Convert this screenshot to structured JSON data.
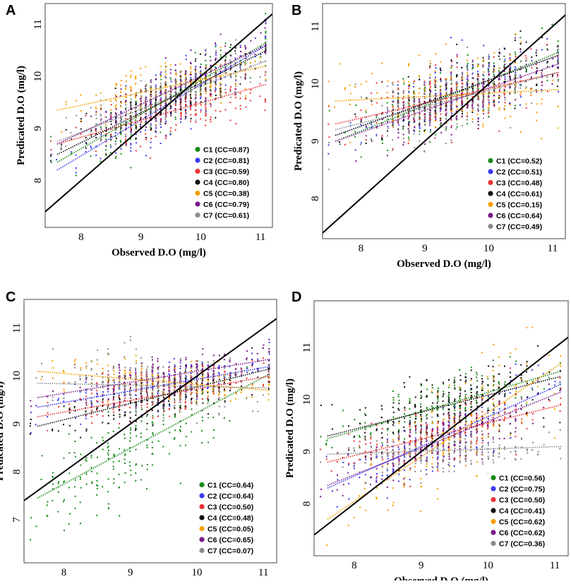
{
  "series_colors": {
    "C1": "#1a8a1a",
    "C2": "#3a3aee",
    "C3": "#ee3333",
    "C4": "#111111",
    "C5": "#f5a000",
    "C6": "#7a1a8a",
    "C7": "#8a8a8a"
  },
  "chart_data": [
    {
      "type": "scatter",
      "panel": "A",
      "xlabel": "Observed D.O (mg/l)",
      "ylabel": "Predicated D.O (mg/l)",
      "xlim": [
        7.4,
        11.2
      ],
      "ylim": [
        7.1,
        11.4
      ],
      "xticks": [
        8,
        9,
        10,
        11
      ],
      "yticks": [
        8,
        9,
        10,
        11
      ],
      "legend_position": "bottom-right",
      "series": [
        {
          "name": "C1",
          "label": "C1 (CC=0.87)",
          "cc": 0.87,
          "fit": [
            [
              7.6,
              8.35
            ],
            [
              11.1,
              10.65
            ]
          ],
          "center": [
            9.5,
            9.6
          ],
          "spread": 0.45
        },
        {
          "name": "C2",
          "label": "C2 (CC=0.81)",
          "cc": 0.81,
          "fit": [
            [
              7.6,
              8.2
            ],
            [
              11.1,
              10.6
            ]
          ],
          "center": [
            9.4,
            9.4
          ],
          "spread": 0.5
        },
        {
          "name": "C3",
          "label": "C3 (CC=0.59)",
          "cc": 0.59,
          "fit": [
            [
              7.6,
              8.7
            ],
            [
              11.1,
              9.85
            ]
          ],
          "center": [
            9.6,
            9.3
          ],
          "spread": 0.45
        },
        {
          "name": "C4",
          "label": "C4 (CC=0.80)",
          "cc": 0.8,
          "fit": [
            [
              7.6,
              8.5
            ],
            [
              11.1,
              10.5
            ]
          ],
          "center": [
            9.5,
            9.6
          ],
          "spread": 0.45
        },
        {
          "name": "C5",
          "label": "C5 (CC=0.38)",
          "cc": 0.38,
          "fit": [
            [
              7.6,
              9.35
            ],
            [
              11.1,
              10.2
            ]
          ],
          "center": [
            9.4,
            9.9
          ],
          "spread": 0.35
        },
        {
          "name": "C6",
          "label": "C6 (CC=0.79)",
          "cc": 0.79,
          "fit": [
            [
              7.6,
              8.7
            ],
            [
              11.1,
              10.6
            ]
          ],
          "center": [
            9.6,
            9.8
          ],
          "spread": 0.4
        },
        {
          "name": "C7",
          "label": "C7 (CC=0.61)",
          "cc": 0.61,
          "fit": [
            [
              7.6,
              8.75
            ],
            [
              11.1,
              10.3
            ]
          ],
          "center": [
            9.5,
            9.6
          ],
          "spread": 0.4
        }
      ]
    },
    {
      "type": "scatter",
      "panel": "B",
      "xlabel": "Observed D.O (mg/l)",
      "ylabel": "Predicated D.O (mg/l)",
      "xlim": [
        7.4,
        11.2
      ],
      "ylim": [
        7.3,
        11.4
      ],
      "xticks": [
        8,
        9,
        10,
        11
      ],
      "yticks": [
        8,
        9,
        10,
        11
      ],
      "legend_position": "bottom-right",
      "series": [
        {
          "name": "C1",
          "label": "C1 (CC=0.52)",
          "cc": 0.52,
          "fit": [
            [
              7.6,
              9.0
            ],
            [
              11.1,
              10.55
            ]
          ],
          "center": [
            9.5,
            9.8
          ],
          "spread": 0.5
        },
        {
          "name": "C2",
          "label": "C2 (CC=0.51)",
          "cc": 0.51,
          "fit": [
            [
              7.6,
              9.1
            ],
            [
              11.1,
              10.5
            ]
          ],
          "center": [
            9.5,
            9.7
          ],
          "spread": 0.5
        },
        {
          "name": "C3",
          "label": "C3 (CC=0.48)",
          "cc": 0.48,
          "fit": [
            [
              7.6,
              9.3
            ],
            [
              11.1,
              10.2
            ]
          ],
          "center": [
            9.5,
            9.7
          ],
          "spread": 0.45
        },
        {
          "name": "C4",
          "label": "C4 (CC=0.61)",
          "cc": 0.61,
          "fit": [
            [
              7.6,
              9.1
            ],
            [
              11.1,
              10.5
            ]
          ],
          "center": [
            9.5,
            9.8
          ],
          "spread": 0.45
        },
        {
          "name": "C5",
          "label": "C5 (CC=0.15)",
          "cc": 0.15,
          "fit": [
            [
              7.6,
              9.7
            ],
            [
              11.1,
              9.9
            ]
          ],
          "center": [
            9.4,
            9.7
          ],
          "spread": 0.55
        },
        {
          "name": "C6",
          "label": "C6 (CC=0.64)",
          "cc": 0.64,
          "fit": [
            [
              7.6,
              9.0
            ],
            [
              11.1,
              10.35
            ]
          ],
          "center": [
            9.5,
            9.8
          ],
          "spread": 0.45
        },
        {
          "name": "C7",
          "label": "C7 (CC=0.49)",
          "cc": 0.49,
          "fit": [
            [
              7.6,
              9.2
            ],
            [
              11.1,
              10.2
            ]
          ],
          "center": [
            9.5,
            9.6
          ],
          "spread": 0.5
        }
      ]
    },
    {
      "type": "scatter",
      "panel": "C",
      "xlabel": "Observed D.O (mg/l)",
      "ylabel": "Predicated D.O (mg/l)",
      "xlim": [
        7.4,
        11.2
      ],
      "ylim": [
        6.1,
        11.6
      ],
      "xticks": [
        8,
        9,
        10,
        11
      ],
      "yticks": [
        7,
        8,
        9,
        10,
        11
      ],
      "legend_position": "bottom-right",
      "series": [
        {
          "name": "C1",
          "label": "C1 (CC=0.64)",
          "cc": 0.64,
          "fit": [
            [
              7.6,
              7.45
            ],
            [
              11.1,
              10.05
            ]
          ],
          "center": [
            9.0,
            8.5
          ],
          "spread": 0.8
        },
        {
          "name": "C2",
          "label": "C2 (CC=0.64)",
          "cc": 0.64,
          "fit": [
            [
              7.6,
              9.35
            ],
            [
              11.1,
              10.2
            ]
          ],
          "center": [
            9.5,
            9.8
          ],
          "spread": 0.35
        },
        {
          "name": "C3",
          "label": "C3 (CC=0.50)",
          "cc": 0.5,
          "fit": [
            [
              7.6,
              9.15
            ],
            [
              11.1,
              10.0
            ]
          ],
          "center": [
            9.5,
            9.6
          ],
          "spread": 0.35
        },
        {
          "name": "C4",
          "label": "C4 (CC=0.48)",
          "cc": 0.48,
          "fit": [
            [
              7.6,
              8.95
            ],
            [
              11.1,
              10.15
            ]
          ],
          "center": [
            9.4,
            9.6
          ],
          "spread": 0.45
        },
        {
          "name": "C5",
          "label": "C5 (CC=0.05)",
          "cc": 0.05,
          "fit": [
            [
              7.6,
              10.1
            ],
            [
              11.1,
              9.7
            ]
          ],
          "center": [
            9.4,
            9.9
          ],
          "spread": 0.35
        },
        {
          "name": "C6",
          "label": "C6 (CC=0.65)",
          "cc": 0.65,
          "fit": [
            [
              7.6,
              9.55
            ],
            [
              11.1,
              10.35
            ]
          ],
          "center": [
            9.6,
            10.0
          ],
          "spread": 0.35
        },
        {
          "name": "C7",
          "label": "C7 (CC=0.07)",
          "cc": 0.07,
          "fit": [
            [
              7.6,
              9.85
            ],
            [
              11.1,
              9.75
            ]
          ],
          "center": [
            9.2,
            10.0
          ],
          "spread": 0.6
        }
      ]
    },
    {
      "type": "scatter",
      "panel": "D",
      "xlabel": "Observed D.O (mg/l)",
      "ylabel": "Predicated D.O (mg/l)",
      "xlim": [
        7.4,
        11.2
      ],
      "ylim": [
        7.0,
        11.9
      ],
      "xticks": [
        8,
        9,
        10,
        11
      ],
      "yticks": [
        8,
        9,
        10,
        11
      ],
      "legend_position": "bottom-right",
      "series": [
        {
          "name": "C1",
          "label": "C1 (CC=0.56)",
          "cc": 0.56,
          "fit": [
            [
              7.6,
              9.25
            ],
            [
              11.1,
              10.55
            ]
          ],
          "center": [
            9.4,
            9.9
          ],
          "spread": 0.45
        },
        {
          "name": "C2",
          "label": "C2 (CC=0.75)",
          "cc": 0.75,
          "fit": [
            [
              7.6,
              8.3
            ],
            [
              11.1,
              10.3
            ]
          ],
          "center": [
            9.3,
            9.1
          ],
          "spread": 0.5
        },
        {
          "name": "C3",
          "label": "C3 (CC=0.50)",
          "cc": 0.5,
          "fit": [
            [
              7.6,
              8.8
            ],
            [
              11.1,
              9.9
            ]
          ],
          "center": [
            9.3,
            9.2
          ],
          "spread": 0.45
        },
        {
          "name": "C4",
          "label": "C4 (CC=0.41)",
          "cc": 0.41,
          "fit": [
            [
              7.6,
              9.3
            ],
            [
              11.1,
              10.45
            ]
          ],
          "center": [
            9.4,
            9.9
          ],
          "spread": 0.6
        },
        {
          "name": "C5",
          "label": "C5 (CC=0.62)",
          "cc": 0.62,
          "fit": [
            [
              7.6,
              7.7
            ],
            [
              11.1,
              10.7
            ]
          ],
          "center": [
            9.5,
            9.0
          ],
          "spread": 0.8
        },
        {
          "name": "C6",
          "label": "C6 (CC=0.62)",
          "cc": 0.62,
          "fit": [
            [
              7.6,
              8.35
            ],
            [
              11.1,
              10.15
            ]
          ],
          "center": [
            9.3,
            9.2
          ],
          "spread": 0.45
        },
        {
          "name": "C7",
          "label": "C7 (CC=0.36)",
          "cc": 0.36,
          "fit": [
            [
              7.6,
              8.95
            ],
            [
              11.1,
              9.1
            ]
          ],
          "center": [
            9.4,
            9.1
          ],
          "spread": 0.35
        }
      ]
    }
  ]
}
